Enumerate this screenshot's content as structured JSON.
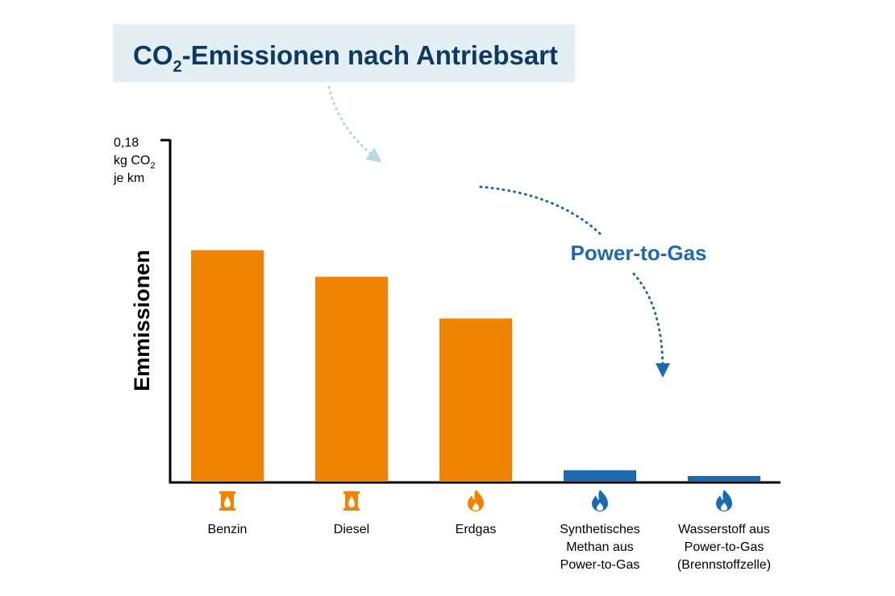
{
  "title": {
    "prefix": "CO",
    "sub": "2",
    "suffix": "-Emissionen nach Antriebsart"
  },
  "annotation": "Power-to-Gas",
  "colors": {
    "fossil": "#f08300",
    "power_to_gas": "#1e6ab0",
    "title_bg": "#e3eff2",
    "title_text": "#0d3a63"
  },
  "chart_data": {
    "type": "bar",
    "ylabel": "Emmissionen",
    "ylim": [
      0,
      0.18
    ],
    "ytop_label": {
      "line1": "0,18",
      "line2_prefix": "kg CO",
      "line2_sub": "2",
      "line3": "je km"
    },
    "categories": [
      [
        "Benzin"
      ],
      [
        "Diesel"
      ],
      [
        "Erdgas"
      ],
      [
        "Synthetisches",
        "Methan aus",
        "Power-to-Gas"
      ],
      [
        "Wasserstoff aus",
        "Power-to-Gas",
        "(Brennstoffzelle)"
      ]
    ],
    "values": [
      0.122,
      0.108,
      0.086,
      0.006,
      0.003
    ],
    "icons": [
      "fuel-barrel-icon",
      "fuel-barrel-icon",
      "flame-icon",
      "flame-icon",
      "flame-icon"
    ],
    "groups": [
      "fossil",
      "fossil",
      "fossil",
      "power_to_gas",
      "power_to_gas"
    ]
  }
}
